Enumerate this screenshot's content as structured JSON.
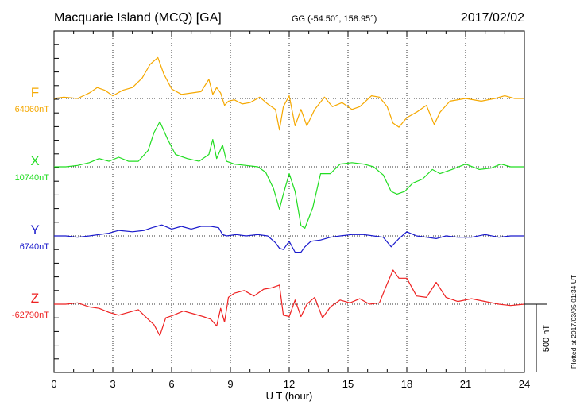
{
  "header": {
    "title": "Macquarie Island (MCQ)  [GA]",
    "coords": "GG (-54.50°, 158.95°)",
    "date": "2017/02/02"
  },
  "side_note": "Plotted at 2017/03/05 01:34  UT",
  "chart_data": {
    "type": "line",
    "xlabel": "U T (hour)",
    "xlim": [
      0,
      24
    ],
    "x_ticks": [
      "0",
      "3",
      "6",
      "9",
      "12",
      "15",
      "18",
      "21",
      "24"
    ],
    "grid": true,
    "scale_bar": {
      "label": "500 nT",
      "value_nT": 500
    },
    "series": [
      {
        "name": "F",
        "baseline": "64060nT",
        "color": "#f5a800",
        "x": [
          0,
          0.5,
          1.2,
          1.8,
          2.2,
          2.6,
          3.0,
          3.5,
          4.0,
          4.5,
          4.9,
          5.3,
          5.6,
          6.0,
          6.5,
          7.0,
          7.5,
          7.9,
          8.1,
          8.3,
          8.5,
          8.7,
          8.9,
          9.2,
          9.6,
          10.0,
          10.5,
          10.9,
          11.3,
          11.5,
          11.7,
          12.0,
          12.3,
          12.6,
          12.9,
          13.3,
          13.8,
          14.2,
          14.7,
          15.2,
          15.6,
          16.2,
          16.6,
          17.0,
          17.3,
          17.6,
          18.0,
          18.5,
          19.0,
          19.4,
          19.7,
          20.2,
          21.0,
          21.8,
          22.5,
          23.0,
          23.5,
          24.0
        ],
        "values": [
          0,
          10,
          0,
          40,
          80,
          60,
          20,
          60,
          80,
          150,
          250,
          300,
          180,
          70,
          30,
          40,
          50,
          140,
          30,
          80,
          40,
          -50,
          -20,
          -10,
          -40,
          -30,
          10,
          -40,
          -80,
          -230,
          -60,
          20,
          -200,
          -80,
          -200,
          -80,
          10,
          -60,
          -30,
          -80,
          -60,
          20,
          10,
          -60,
          -180,
          -210,
          -140,
          -100,
          -50,
          -190,
          -100,
          -20,
          0,
          -20,
          0,
          20,
          0,
          0
        ]
      },
      {
        "name": "X",
        "baseline": "10740nT",
        "color": "#22dd22",
        "x": [
          0,
          0.6,
          1.2,
          1.8,
          2.3,
          2.8,
          3.3,
          3.8,
          4.3,
          4.8,
          5.1,
          5.4,
          5.8,
          6.2,
          6.8,
          7.4,
          7.9,
          8.1,
          8.3,
          8.6,
          8.8,
          9.2,
          9.8,
          10.4,
          10.8,
          11.2,
          11.5,
          11.7,
          12.0,
          12.3,
          12.6,
          12.8,
          13.2,
          13.6,
          14.1,
          14.6,
          15.2,
          15.8,
          16.3,
          16.8,
          17.2,
          17.5,
          17.9,
          18.3,
          18.8,
          19.3,
          19.7,
          20.3,
          21.0,
          21.7,
          22.3,
          22.8,
          23.3,
          24.0
        ],
        "values": [
          0,
          0,
          10,
          30,
          60,
          40,
          70,
          40,
          40,
          120,
          250,
          330,
          200,
          90,
          60,
          40,
          90,
          200,
          60,
          160,
          40,
          20,
          10,
          0,
          -40,
          -160,
          -310,
          -200,
          -50,
          -180,
          -430,
          -450,
          -300,
          -50,
          -50,
          20,
          30,
          20,
          0,
          -60,
          -180,
          -200,
          -180,
          -120,
          -90,
          -20,
          -50,
          -20,
          20,
          -20,
          -10,
          20,
          0,
          0
        ]
      },
      {
        "name": "Y",
        "baseline": "6740nT",
        "color": "#1a1acc",
        "x": [
          0,
          0.6,
          1.2,
          1.8,
          2.3,
          2.8,
          3.3,
          4.0,
          4.6,
          5.0,
          5.5,
          6.0,
          6.5,
          7.0,
          7.5,
          8.0,
          8.4,
          8.6,
          8.8,
          9.3,
          9.8,
          10.4,
          10.9,
          11.3,
          11.5,
          11.7,
          12.0,
          12.3,
          12.6,
          12.8,
          13.1,
          13.6,
          14.1,
          14.6,
          15.2,
          15.8,
          16.3,
          16.8,
          17.2,
          17.6,
          18.0,
          18.5,
          19.0,
          19.5,
          20.0,
          20.6,
          21.3,
          22.0,
          22.7,
          23.3,
          24.0
        ],
        "values": [
          0,
          0,
          -10,
          0,
          10,
          20,
          40,
          30,
          40,
          60,
          80,
          50,
          70,
          50,
          70,
          70,
          60,
          10,
          0,
          10,
          0,
          10,
          0,
          -50,
          -90,
          -100,
          -40,
          -120,
          -120,
          -80,
          -40,
          -30,
          -10,
          0,
          10,
          10,
          0,
          -10,
          -80,
          -20,
          30,
          0,
          -10,
          -20,
          0,
          -10,
          -10,
          10,
          -10,
          0,
          0
        ]
      },
      {
        "name": "Z",
        "baseline": "-62790nT",
        "color": "#ee2222",
        "x": [
          0,
          0.6,
          1.2,
          1.8,
          2.3,
          2.8,
          3.3,
          3.8,
          4.3,
          4.8,
          5.1,
          5.4,
          5.7,
          6.1,
          6.6,
          7.1,
          7.6,
          8.0,
          8.3,
          8.5,
          8.7,
          8.9,
          9.2,
          9.7,
          10.2,
          10.7,
          11.1,
          11.5,
          11.7,
          12.0,
          12.3,
          12.6,
          12.9,
          13.3,
          13.7,
          14.1,
          14.6,
          15.1,
          15.6,
          16.1,
          16.6,
          17.0,
          17.3,
          17.6,
          18.0,
          18.5,
          19.0,
          19.5,
          20.0,
          20.6,
          21.3,
          22.0,
          22.7,
          23.3,
          24.0
        ],
        "values": [
          0,
          0,
          10,
          -20,
          -30,
          -60,
          -80,
          -60,
          -40,
          -110,
          -150,
          -230,
          -100,
          -80,
          -50,
          -70,
          -90,
          -110,
          -160,
          -30,
          -130,
          50,
          80,
          100,
          60,
          110,
          120,
          140,
          -80,
          -90,
          30,
          -90,
          0,
          50,
          -100,
          -20,
          30,
          10,
          40,
          0,
          10,
          150,
          250,
          190,
          190,
          60,
          50,
          160,
          50,
          20,
          40,
          20,
          0,
          -10,
          0
        ]
      }
    ]
  }
}
